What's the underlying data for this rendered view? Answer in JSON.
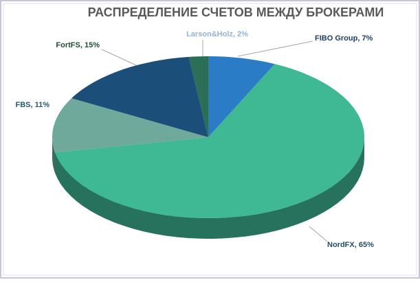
{
  "chart_data": {
    "type": "pie3d",
    "title": "РАСПРЕДЕЛЕНИЕ СЧЕТОВ МЕЖДУ БРОКЕРАМИ",
    "values": [
      7,
      65,
      11,
      15,
      2
    ],
    "value_labels": [
      "FIBO Group, 7%",
      "NordFX, 65%",
      "FBS, 11%",
      "FortFS, 15%",
      "Larson&Holz, 2%"
    ],
    "colors": [
      "#2a7cc6",
      "#3fb894",
      "#6ea99c",
      "#1b4f79",
      "#2b6f58"
    ]
  }
}
